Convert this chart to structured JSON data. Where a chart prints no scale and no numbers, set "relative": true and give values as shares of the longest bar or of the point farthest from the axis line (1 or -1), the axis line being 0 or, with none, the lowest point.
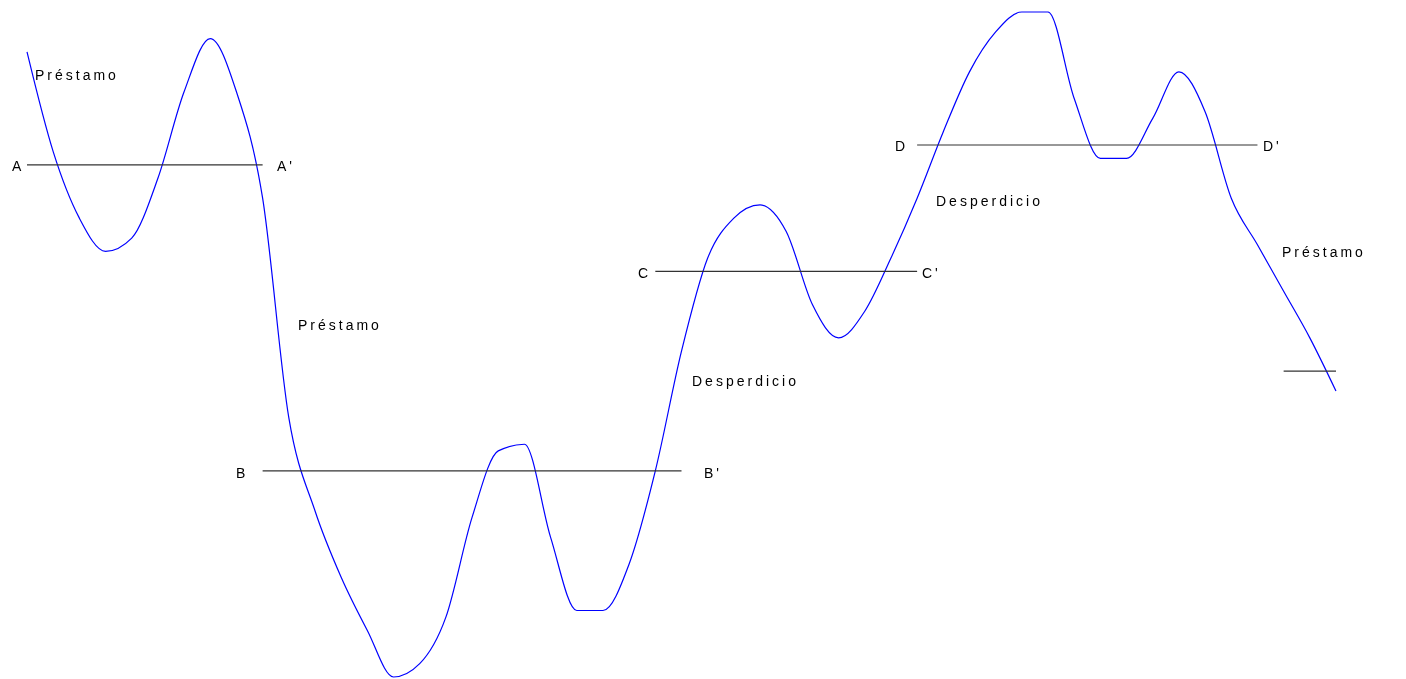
{
  "chart_data": {
    "type": "line",
    "relative": true,
    "categories": [
      null,
      null,
      null,
      null,
      null,
      null,
      null,
      null,
      null,
      null,
      null,
      null,
      null,
      null,
      null,
      null,
      null,
      null,
      null,
      null,
      null,
      null,
      null,
      null,
      null,
      null,
      null,
      null,
      null,
      null,
      null,
      null,
      null,
      null,
      null,
      null,
      null,
      null,
      null,
      null,
      null,
      null,
      null,
      null,
      null,
      null,
      null,
      null,
      null,
      null,
      null
    ],
    "series": [
      {
        "color": "#0000ff",
        "values": [
          0.94,
          0.79,
          0.69,
          0.64,
          0.66,
          0.75,
          0.88,
          0.96,
          0.88,
          0.72,
          0.39,
          0.25,
          0.15,
          0.07,
          0,
          0.02,
          0.09,
          0.24,
          0.34,
          0.35,
          0.21,
          0.1,
          0.1,
          0.17,
          0.31,
          0.49,
          0.63,
          0.69,
          0.71,
          0.67,
          0.56,
          0.51,
          0.55,
          0.63,
          0.72,
          0.82,
          0.91,
          0.97,
          1,
          1,
          0.87,
          0.78,
          0.78,
          0.84,
          0.91,
          0.85,
          0.72,
          0.65,
          0.58,
          0.51,
          0.43
        ]
      },
      {
        "color": "#333333",
        "values": [
          0.77,
          0.77,
          0.77,
          0.77,
          0.77,
          0.77,
          0.77,
          0.77,
          0.77,
          0.77,
          null,
          null,
          null,
          null,
          null,
          null,
          null,
          null,
          null,
          null,
          null,
          null,
          null,
          null,
          null,
          null,
          null,
          null,
          null,
          null,
          null,
          null,
          null,
          null,
          null,
          null,
          null,
          null,
          null,
          null,
          null,
          null,
          null,
          null,
          null,
          null,
          null,
          null,
          null,
          null,
          null
        ]
      },
      {
        "color": "#333333",
        "values": [
          null,
          null,
          null,
          null,
          null,
          null,
          null,
          null,
          null,
          0.31,
          0.31,
          0.31,
          0.31,
          0.31,
          0.31,
          0.31,
          0.31,
          0.31,
          0.31,
          0.31,
          0.31,
          0.31,
          0.31,
          0.31,
          0.31,
          0.31,
          null,
          null,
          null,
          null,
          null,
          null,
          null,
          null,
          null,
          null,
          null,
          null,
          null,
          null,
          null,
          null,
          null,
          null,
          null,
          null,
          null,
          null,
          null,
          null,
          null
        ]
      },
      {
        "color": "#333333",
        "values": [
          null,
          null,
          null,
          null,
          null,
          null,
          null,
          null,
          null,
          null,
          null,
          null,
          null,
          null,
          null,
          null,
          null,
          null,
          null,
          null,
          null,
          null,
          null,
          null,
          0.61,
          0.61,
          0.61,
          0.61,
          0.61,
          0.61,
          0.61,
          0.61,
          0.61,
          0.61,
          0.61,
          null,
          null,
          null,
          null,
          null,
          null,
          null,
          null,
          null,
          null,
          null,
          null,
          null,
          null,
          null,
          null
        ]
      },
      {
        "color": "#333333",
        "values": [
          null,
          null,
          null,
          null,
          null,
          null,
          null,
          null,
          null,
          null,
          null,
          null,
          null,
          null,
          null,
          null,
          null,
          null,
          null,
          null,
          null,
          null,
          null,
          null,
          null,
          null,
          null,
          null,
          null,
          null,
          null,
          null,
          null,
          null,
          0.8,
          0.8,
          0.8,
          0.8,
          0.8,
          0.8,
          0.8,
          0.8,
          0.8,
          0.8,
          0.8,
          0.8,
          0.8,
          0.8,
          null,
          null,
          null
        ]
      },
      {
        "color": "#333333",
        "values": [
          null,
          null,
          null,
          null,
          null,
          null,
          null,
          null,
          null,
          null,
          null,
          null,
          null,
          null,
          null,
          null,
          null,
          null,
          null,
          null,
          null,
          null,
          null,
          null,
          null,
          null,
          null,
          null,
          null,
          null,
          null,
          null,
          null,
          null,
          null,
          null,
          null,
          null,
          null,
          null,
          null,
          null,
          null,
          null,
          null,
          null,
          null,
          null,
          0.46,
          0.46,
          0.46
        ]
      }
    ],
    "annotations": [
      "Préstamo",
      "A",
      "A'",
      "Préstamo",
      "B",
      "B'",
      "C",
      "C'",
      "Desperdicio",
      "D",
      "D'",
      "Desperdicio",
      "Préstamo"
    ]
  }
}
